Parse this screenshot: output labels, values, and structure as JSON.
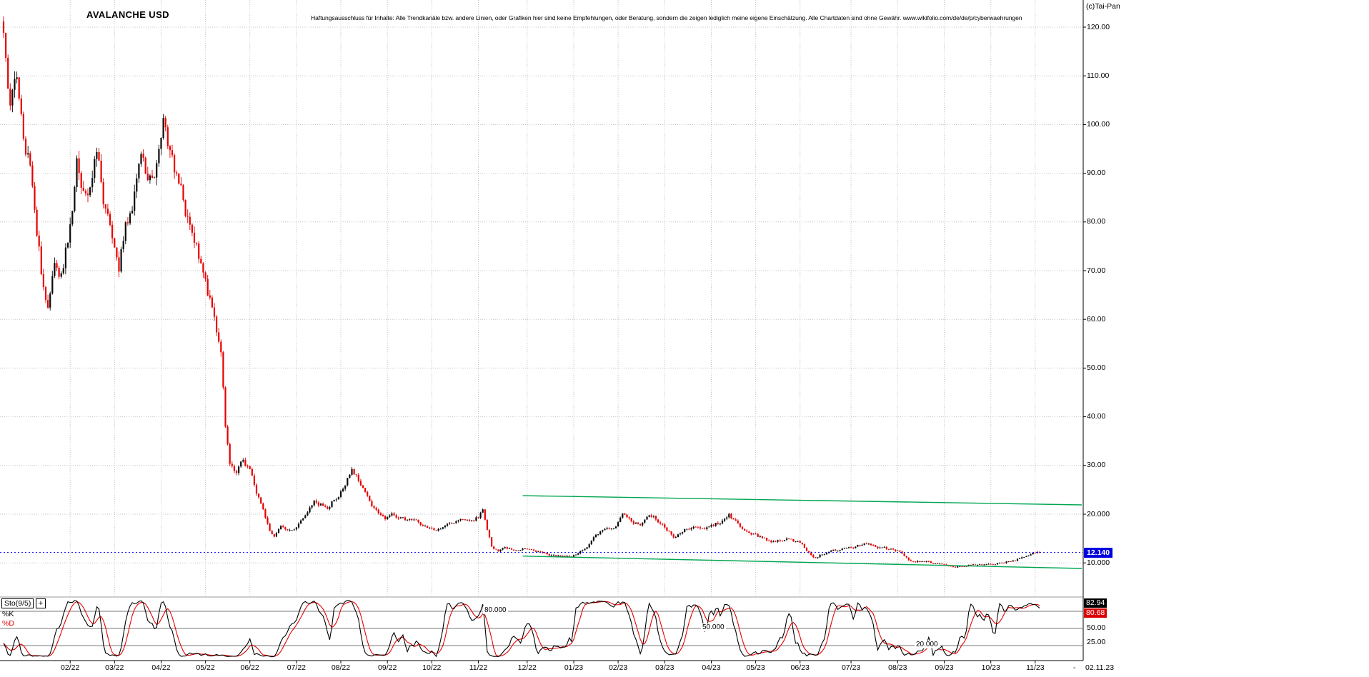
{
  "header": {
    "title": "AVALANCHE USD",
    "disclaimer": "Haftungsausschluss für Inhalte: Alle Trendkanäle bzw. andere Linien, oder Grafiken hier sind keine Empfehlungen, oder Beratung, sondern die zeigen lediglich meine eigene Einschätzung. Alle Chartdaten sind ohne Gewähr. www.wikifolio.com/de/de/p/cyberwaehrungen",
    "copyright": "(c)Tai-Pan"
  },
  "colors": {
    "up": "#0a0a0a",
    "down": "#e60000",
    "grid": "#c4c4c4",
    "channel": "#00a550",
    "last_price_line": "#0000ff",
    "badge_bg": "#0000e0",
    "k_line": "#000000",
    "d_line": "#e60000",
    "k_badge_bg": "#000000",
    "d_badge_bg": "#dd0000"
  },
  "chart_data": {
    "type": "candlestick",
    "title": "AVALANCHE USD",
    "subpanel": "stochastic",
    "y_axis": {
      "tick_labels": [
        "120.00",
        "110.00",
        "100.00",
        "90.00",
        "80.00",
        "70.00",
        "60.00",
        "50.00",
        "40.00",
        "30.00",
        "20.000",
        "10.000"
      ],
      "tick_values": [
        120,
        110,
        100,
        90,
        80,
        70,
        60,
        50,
        40,
        30,
        20,
        10
      ],
      "last_price": 12.14,
      "last_price_label": "12.140"
    },
    "x_axis": {
      "months": [
        [
          "02/22",
          30
        ],
        [
          "03/22",
          50
        ],
        [
          "04/22",
          71
        ],
        [
          "05/22",
          91
        ],
        [
          "06/22",
          111
        ],
        [
          "07/22",
          132
        ],
        [
          "08/22",
          152
        ],
        [
          "09/22",
          173
        ],
        [
          "10/22",
          193
        ],
        [
          "11/22",
          214
        ],
        [
          "12/22",
          236
        ],
        [
          "01/23",
          257
        ],
        [
          "02/23",
          277
        ],
        [
          "03/23",
          298
        ],
        [
          "04/23",
          319
        ],
        [
          "05/23",
          339
        ],
        [
          "06/23",
          359
        ],
        [
          "07/23",
          382
        ],
        [
          "08/23",
          403
        ],
        [
          "09/23",
          424
        ],
        [
          "10/23",
          445
        ],
        [
          "11/23",
          465
        ]
      ],
      "end_dash": "-",
      "end_date_label": "02.11.23"
    },
    "channel": {
      "color": "#00a550",
      "upper": {
        "start": [
          234,
          23.8
        ],
        "end": [
          486,
          21.9
        ]
      },
      "lower": {
        "start": [
          234,
          11.4
        ],
        "end": [
          486,
          8.85
        ]
      }
    },
    "candles": {
      "count": 468,
      "seed": 1234,
      "volatility": 0.02,
      "wick": 0.018,
      "anchors": [
        [
          0,
          118
        ],
        [
          3,
          104
        ],
        [
          6,
          110
        ],
        [
          9,
          99
        ],
        [
          13,
          88
        ],
        [
          17,
          70
        ],
        [
          20,
          63
        ],
        [
          23,
          72
        ],
        [
          26,
          69
        ],
        [
          29,
          77
        ],
        [
          33,
          92
        ],
        [
          36,
          85
        ],
        [
          39,
          88
        ],
        [
          42,
          94
        ],
        [
          45,
          84
        ],
        [
          48,
          78
        ],
        [
          52,
          71
        ],
        [
          55,
          80
        ],
        [
          58,
          84
        ],
        [
          62,
          95
        ],
        [
          65,
          90
        ],
        [
          68,
          87
        ],
        [
          72,
          99
        ],
        [
          75,
          94
        ],
        [
          78,
          90
        ],
        [
          81,
          86
        ],
        [
          84,
          78
        ],
        [
          87,
          74
        ],
        [
          90,
          70
        ],
        [
          93,
          64
        ],
        [
          96,
          57
        ],
        [
          98,
          52
        ],
        [
          100,
          38
        ],
        [
          102,
          31
        ],
        [
          105,
          28
        ],
        [
          108,
          31
        ],
        [
          111,
          29
        ],
        [
          114,
          24
        ],
        [
          117,
          21
        ],
        [
          120,
          17
        ],
        [
          122,
          15.5
        ],
        [
          125,
          18
        ],
        [
          128,
          17
        ],
        [
          131,
          16.5
        ],
        [
          134,
          18.5
        ],
        [
          137,
          20
        ],
        [
          140,
          23
        ],
        [
          143,
          22
        ],
        [
          146,
          21
        ],
        [
          149,
          23
        ],
        [
          152,
          24.5
        ],
        [
          155,
          27.5
        ],
        [
          157,
          29
        ],
        [
          160,
          27
        ],
        [
          163,
          24
        ],
        [
          166,
          22
        ],
        [
          169,
          20
        ],
        [
          172,
          19
        ],
        [
          175,
          20
        ],
        [
          178,
          19.5
        ],
        [
          181,
          18.8
        ],
        [
          184,
          19
        ],
        [
          187,
          18.2
        ],
        [
          190,
          17.4
        ],
        [
          193,
          17
        ],
        [
          196,
          16.8
        ],
        [
          199,
          17.5
        ],
        [
          202,
          18
        ],
        [
          205,
          19
        ],
        [
          208,
          18.6
        ],
        [
          211,
          18.4
        ],
        [
          214,
          19.6
        ],
        [
          216,
          20.6
        ],
        [
          218,
          17
        ],
        [
          220,
          13.2
        ],
        [
          223,
          12.4
        ],
        [
          226,
          13.4
        ],
        [
          229,
          13
        ],
        [
          232,
          12.8
        ],
        [
          236,
          13
        ],
        [
          239,
          12.3
        ],
        [
          243,
          11.9
        ],
        [
          247,
          11.6
        ],
        [
          251,
          11.4
        ],
        [
          255,
          11.2
        ],
        [
          258,
          11.6
        ],
        [
          261,
          12.6
        ],
        [
          264,
          14
        ],
        [
          267,
          15.6
        ],
        [
          270,
          16.4
        ],
        [
          273,
          16.9
        ],
        [
          276,
          17.6
        ],
        [
          279,
          20.8
        ],
        [
          281,
          19.6
        ],
        [
          284,
          18.4
        ],
        [
          287,
          17.6
        ],
        [
          290,
          19.4
        ],
        [
          293,
          19.8
        ],
        [
          296,
          18.4
        ],
        [
          299,
          16.8
        ],
        [
          302,
          15.2
        ],
        [
          305,
          16.4
        ],
        [
          308,
          17
        ],
        [
          311,
          17.4
        ],
        [
          314,
          16.8
        ],
        [
          317,
          17.2
        ],
        [
          320,
          17.8
        ],
        [
          323,
          18.4
        ],
        [
          327,
          19.8
        ],
        [
          330,
          18.6
        ],
        [
          333,
          17.4
        ],
        [
          336,
          16.6
        ],
        [
          339,
          15.6
        ],
        [
          342,
          15
        ],
        [
          345,
          14.6
        ],
        [
          348,
          14.4
        ],
        [
          351,
          14.7
        ],
        [
          354,
          14.9
        ],
        [
          357,
          14.4
        ],
        [
          360,
          13.8
        ],
        [
          363,
          12.2
        ],
        [
          366,
          10.9
        ],
        [
          369,
          11.8
        ],
        [
          372,
          12.2
        ],
        [
          375,
          12.5
        ],
        [
          378,
          12.7
        ],
        [
          382,
          13
        ],
        [
          386,
          13.6
        ],
        [
          390,
          14.2
        ],
        [
          393,
          13.4
        ],
        [
          396,
          13
        ],
        [
          399,
          12.8
        ],
        [
          403,
          12.6
        ],
        [
          406,
          11.4
        ],
        [
          409,
          10.4
        ],
        [
          412,
          10.3
        ],
        [
          415,
          10.2
        ],
        [
          418,
          10
        ],
        [
          421,
          9.9
        ],
        [
          424,
          9.7
        ],
        [
          427,
          9.4
        ],
        [
          430,
          9.3
        ],
        [
          433,
          9.4
        ],
        [
          436,
          9.6
        ],
        [
          439,
          9.5
        ],
        [
          442,
          9.6
        ],
        [
          445,
          9.8
        ],
        [
          448,
          9.9
        ],
        [
          451,
          10.1
        ],
        [
          454,
          10.4
        ],
        [
          457,
          10.7
        ],
        [
          460,
          11.2
        ],
        [
          463,
          11.7
        ],
        [
          466,
          12.1
        ],
        [
          467,
          12.14
        ]
      ]
    },
    "stochastic": {
      "label": "Sto(9/5)",
      "plus_glyph": "+",
      "k_label": "%K",
      "d_label": "%D",
      "k_period": 9,
      "d_period": 5,
      "k_value": "82.94",
      "d_value": "80.68",
      "levels": [
        80,
        50,
        20
      ],
      "level_labels": [
        "80.000",
        "50.000",
        "20.000"
      ],
      "axis_values": [
        50,
        25
      ],
      "axis_labels": [
        "50.00",
        "25.00"
      ]
    }
  }
}
